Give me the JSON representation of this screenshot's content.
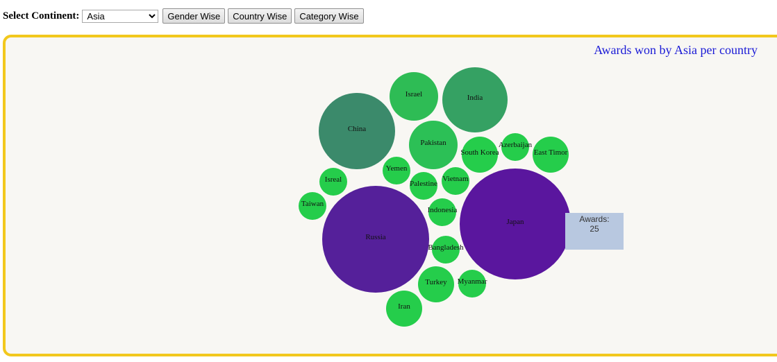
{
  "controls": {
    "continent_label": "Select Continent:",
    "continent_selected": "Asia",
    "gender_button": "Gender Wise",
    "country_button": "Country Wise",
    "category_button": "Category Wise"
  },
  "tooltip": {
    "label": "Awards:",
    "value": "25"
  },
  "chart_data": {
    "type": "bubble",
    "title": "Awards won by Asia per country",
    "bubbles": [
      {
        "name": "China",
        "color": "#3b8a6b"
      },
      {
        "name": "Israel",
        "color": "#2ebc55"
      },
      {
        "name": "India",
        "color": "#35a163"
      },
      {
        "name": "Pakistan",
        "color": "#2cc056"
      },
      {
        "name": "South Korea",
        "color": "#25cd4b"
      },
      {
        "name": "Azerbaijan",
        "color": "#25cd4b"
      },
      {
        "name": "East Timor",
        "color": "#25cd4b"
      },
      {
        "name": "Yemen",
        "color": "#25cd4b"
      },
      {
        "name": "Isreal",
        "color": "#25cd4b"
      },
      {
        "name": "Palestine",
        "color": "#25cd4b"
      },
      {
        "name": "Vietnam",
        "color": "#25cd4b"
      },
      {
        "name": "Taiwan",
        "color": "#25cd4b"
      },
      {
        "name": "Indonesia",
        "color": "#25cd4b"
      },
      {
        "name": "Russia",
        "color": "#55209a"
      },
      {
        "name": "Japan",
        "color": "#5a169e"
      },
      {
        "name": "Bangladesh",
        "color": "#25cd4b"
      },
      {
        "name": "Turkey",
        "color": "#25cd4b"
      },
      {
        "name": "Myanmar",
        "color": "#25cd4b"
      },
      {
        "name": "Iran",
        "color": "#25cd4b"
      }
    ]
  }
}
